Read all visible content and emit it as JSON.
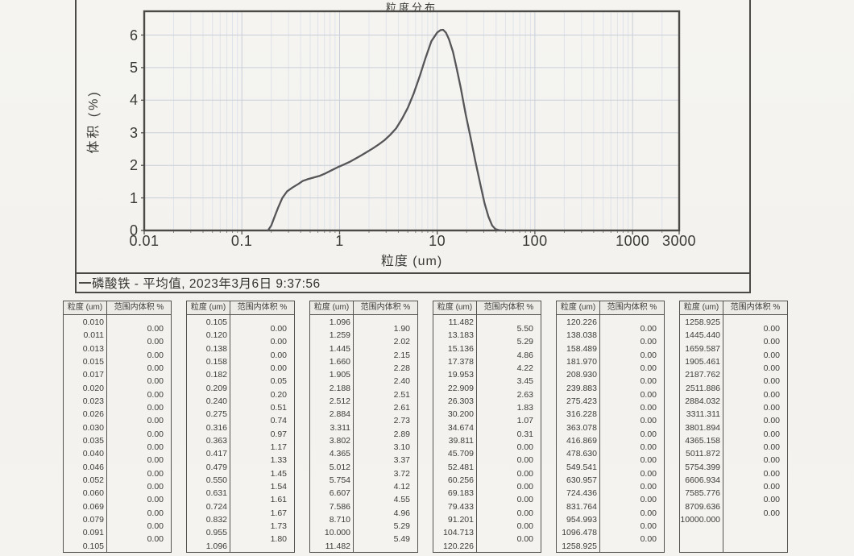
{
  "legend": {
    "label": "磷酸铁 - 平均值, 2023年3月6日 9:37:56",
    "series_color": "#4b4a46"
  },
  "chart_data": {
    "type": "line",
    "title": "粒度分布",
    "xlabel": "粒度 (um)",
    "ylabel": "体积 (%)",
    "x_scale": "log",
    "xlim": [
      0.01,
      3000
    ],
    "ylim": [
      0,
      6.73
    ],
    "grid": true,
    "legend_position": "bottom",
    "x_tick_labels": [
      "0.01",
      "0.1",
      "1",
      "10",
      "100",
      "1000",
      "3000"
    ],
    "x_tick_values": [
      0.01,
      0.1,
      1,
      10,
      100,
      1000,
      3000
    ],
    "y_tick_labels": [
      "0",
      "1",
      "2",
      "3",
      "4",
      "5",
      "6"
    ],
    "y_tick_values": [
      0,
      1,
      2,
      3,
      4,
      5,
      6
    ],
    "colors": {
      "curve": "#565558",
      "grid_minor": "#dfe3ea",
      "grid_major": "#c9cfd9",
      "frame": "#4b4a46"
    },
    "series": [
      {
        "name": "磷酸铁 - 平均值, 2023年3月6日 9:37:56",
        "points": [
          [
            0.185,
            0.0
          ],
          [
            0.2,
            0.15
          ],
          [
            0.215,
            0.4
          ],
          [
            0.235,
            0.7
          ],
          [
            0.26,
            1.0
          ],
          [
            0.29,
            1.2
          ],
          [
            0.33,
            1.32
          ],
          [
            0.38,
            1.43
          ],
          [
            0.42,
            1.52
          ],
          [
            0.48,
            1.58
          ],
          [
            0.55,
            1.63
          ],
          [
            0.631,
            1.68
          ],
          [
            0.724,
            1.76
          ],
          [
            0.832,
            1.85
          ],
          [
            0.955,
            1.94
          ],
          [
            1.096,
            2.02
          ],
          [
            1.259,
            2.1
          ],
          [
            1.445,
            2.2
          ],
          [
            1.66,
            2.3
          ],
          [
            1.905,
            2.41
          ],
          [
            2.188,
            2.52
          ],
          [
            2.512,
            2.64
          ],
          [
            2.884,
            2.77
          ],
          [
            3.311,
            2.94
          ],
          [
            3.802,
            3.14
          ],
          [
            4.365,
            3.43
          ],
          [
            5.012,
            3.77
          ],
          [
            5.754,
            4.21
          ],
          [
            6.607,
            4.73
          ],
          [
            7.586,
            5.29
          ],
          [
            8.71,
            5.81
          ],
          [
            10.0,
            6.08
          ],
          [
            10.8,
            6.15
          ],
          [
            11.5,
            6.16
          ],
          [
            12.3,
            6.07
          ],
          [
            13.2,
            5.87
          ],
          [
            14.5,
            5.48
          ],
          [
            15.8,
            4.98
          ],
          [
            17.4,
            4.38
          ],
          [
            19.5,
            3.58
          ],
          [
            22.0,
            2.84
          ],
          [
            24.5,
            2.14
          ],
          [
            27.5,
            1.44
          ],
          [
            30.5,
            0.84
          ],
          [
            33.5,
            0.42
          ],
          [
            36.5,
            0.15
          ],
          [
            39.5,
            0.04
          ],
          [
            43.0,
            0.01
          ],
          [
            48.0,
            0.0
          ]
        ]
      }
    ]
  },
  "table_headers": {
    "size": "粒度 (um)",
    "volume": "范围内体积 %"
  },
  "tables": [
    {
      "sizes": [
        "0.010",
        "0.011",
        "0.013",
        "0.015",
        "0.017",
        "0.020",
        "0.023",
        "0.026",
        "0.030",
        "0.035",
        "0.040",
        "0.046",
        "0.052",
        "0.060",
        "0.069",
        "0.079",
        "0.091",
        "0.105"
      ],
      "values": [
        "0.00",
        "0.00",
        "0.00",
        "0.00",
        "0.00",
        "0.00",
        "0.00",
        "0.00",
        "0.00",
        "0.00",
        "0.00",
        "0.00",
        "0.00",
        "0.00",
        "0.00",
        "0.00",
        "0.00"
      ]
    },
    {
      "sizes": [
        "0.105",
        "0.120",
        "0.138",
        "0.158",
        "0.182",
        "0.209",
        "0.240",
        "0.275",
        "0.316",
        "0.363",
        "0.417",
        "0.479",
        "0.550",
        "0.631",
        "0.724",
        "0.832",
        "0.955",
        "1.096"
      ],
      "values": [
        "0.00",
        "0.00",
        "0.00",
        "0.00",
        "0.05",
        "0.20",
        "0.51",
        "0.74",
        "0.97",
        "1.17",
        "1.33",
        "1.45",
        "1.54",
        "1.61",
        "1.67",
        "1.73",
        "1.80"
      ]
    },
    {
      "sizes": [
        "1.096",
        "1.259",
        "1.445",
        "1.660",
        "1.905",
        "2.188",
        "2.512",
        "2.884",
        "3.311",
        "3.802",
        "4.365",
        "5.012",
        "5.754",
        "6.607",
        "7.586",
        "8.710",
        "10.000",
        "11.482"
      ],
      "values": [
        "1.90",
        "2.02",
        "2.15",
        "2.28",
        "2.40",
        "2.51",
        "2.61",
        "2.73",
        "2.89",
        "3.10",
        "3.37",
        "3.72",
        "4.12",
        "4.55",
        "4.96",
        "5.29",
        "5.49"
      ]
    },
    {
      "sizes": [
        "11.482",
        "13.183",
        "15.136",
        "17.378",
        "19.953",
        "22.909",
        "26.303",
        "30.200",
        "34.674",
        "39.811",
        "45.709",
        "52.481",
        "60.256",
        "69.183",
        "79.433",
        "91.201",
        "104.713",
        "120.226"
      ],
      "values": [
        "5.50",
        "5.29",
        "4.86",
        "4.22",
        "3.45",
        "2.63",
        "1.83",
        "1.07",
        "0.31",
        "0.00",
        "0.00",
        "0.00",
        "0.00",
        "0.00",
        "0.00",
        "0.00",
        "0.00"
      ]
    },
    {
      "sizes": [
        "120.226",
        "138.038",
        "158.489",
        "181.970",
        "208.930",
        "239.883",
        "275.423",
        "316.228",
        "363.078",
        "416.869",
        "478.630",
        "549.541",
        "630.957",
        "724.436",
        "831.764",
        "954.993",
        "1096.478",
        "1258.925"
      ],
      "values": [
        "0.00",
        "0.00",
        "0.00",
        "0.00",
        "0.00",
        "0.00",
        "0.00",
        "0.00",
        "0.00",
        "0.00",
        "0.00",
        "0.00",
        "0.00",
        "0.00",
        "0.00",
        "0.00",
        "0.00"
      ]
    },
    {
      "sizes": [
        "1258.925",
        "1445.440",
        "1659.587",
        "1905.461",
        "2187.762",
        "2511.886",
        "2884.032",
        "3311.311",
        "3801.894",
        "4365.158",
        "5011.872",
        "5754.399",
        "6606.934",
        "7585.776",
        "8709.636",
        "10000.000"
      ],
      "values": [
        "0.00",
        "0.00",
        "0.00",
        "0.00",
        "0.00",
        "0.00",
        "0.00",
        "0.00",
        "0.00",
        "0.00",
        "0.00",
        "0.00",
        "0.00",
        "0.00",
        "0.00"
      ]
    }
  ]
}
